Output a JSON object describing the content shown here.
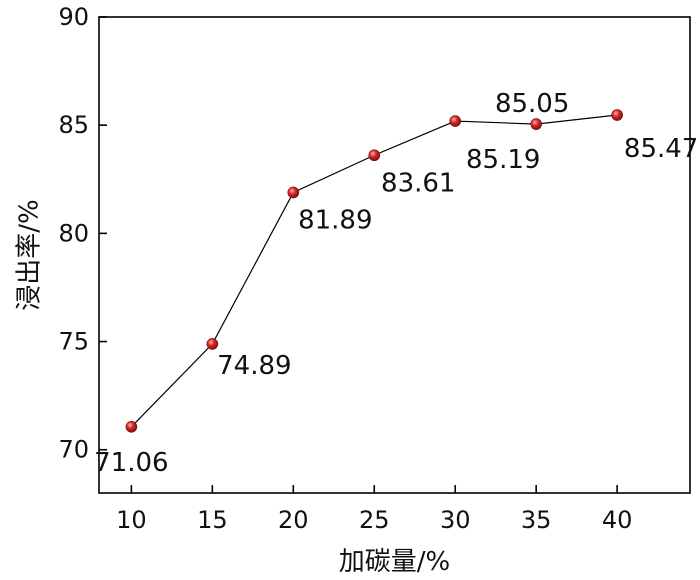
{
  "chart_data": {
    "type": "line",
    "title": "",
    "xlabel": "加碳量/%",
    "ylabel": "浸出率/%",
    "x": [
      10,
      15,
      20,
      25,
      30,
      35,
      40
    ],
    "series": [
      {
        "values": [
          71.06,
          74.89,
          81.89,
          83.61,
          85.19,
          85.05,
          85.47
        ]
      }
    ],
    "data_labels": [
      "71.06",
      "74.89",
      "81.89",
      "83.61",
      "85.19",
      "85.05",
      "85.47"
    ],
    "xticks": [
      10,
      15,
      20,
      25,
      30,
      35,
      40
    ],
    "yticks": [
      70,
      75,
      80,
      85,
      90
    ],
    "xlim": [
      8,
      44.5
    ],
    "ylim": [
      68,
      90
    ],
    "grid": false,
    "legend": "none",
    "colors": {
      "line": "#000000",
      "marker": "#d42a2a",
      "axis": "#000000"
    }
  }
}
